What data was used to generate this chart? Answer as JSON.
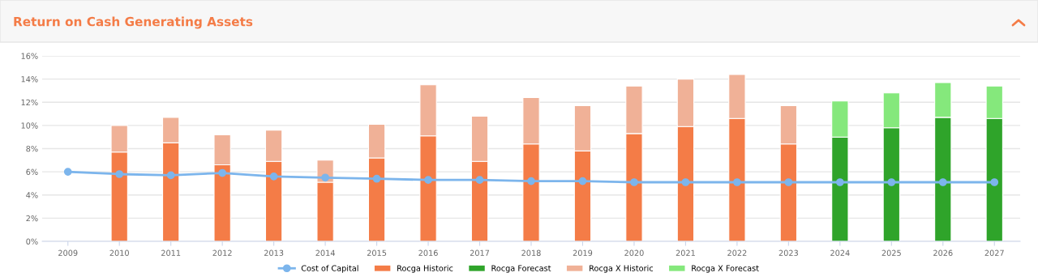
{
  "chart_data": {
    "type": "bar",
    "title": "Return on Cash Generating Assets",
    "stacked": true,
    "categories": [
      "2009",
      "2010",
      "2011",
      "2012",
      "2013",
      "2014",
      "2015",
      "2016",
      "2017",
      "2018",
      "2019",
      "2020",
      "2021",
      "2022",
      "2023",
      "2024",
      "2025",
      "2026",
      "2027"
    ],
    "series": [
      {
        "name": "Cost of Capital",
        "type": "line",
        "color": "#7cb5ec",
        "marker": "circle",
        "values": [
          6.0,
          5.8,
          5.7,
          5.9,
          5.6,
          5.5,
          5.4,
          5.3,
          5.3,
          5.2,
          5.2,
          5.1,
          5.1,
          5.1,
          5.1,
          5.1,
          5.1,
          5.1,
          5.1
        ]
      },
      {
        "name": "Rocga Historic",
        "color": "#f47c47",
        "values": [
          null,
          7.7,
          8.5,
          6.6,
          6.9,
          5.1,
          7.2,
          9.1,
          6.9,
          8.4,
          7.8,
          9.3,
          9.9,
          10.6,
          8.4,
          null,
          null,
          null,
          null
        ]
      },
      {
        "name": "Rocga Forecast",
        "color": "#2fa42a",
        "values": [
          null,
          null,
          null,
          null,
          null,
          null,
          null,
          null,
          null,
          null,
          null,
          null,
          null,
          null,
          null,
          9.0,
          9.8,
          10.7,
          10.6
        ]
      },
      {
        "name": "Rocga X Historic",
        "color": "#f0b197",
        "values": [
          null,
          2.3,
          2.2,
          2.6,
          2.7,
          1.9,
          2.9,
          4.4,
          3.9,
          4.0,
          3.9,
          4.1,
          4.1,
          3.8,
          3.3,
          null,
          null,
          null,
          null
        ]
      },
      {
        "name": "Rocga X Forecast",
        "color": "#85e87c",
        "values": [
          null,
          null,
          null,
          null,
          null,
          null,
          null,
          null,
          null,
          null,
          null,
          null,
          null,
          null,
          null,
          3.1,
          3.0,
          3.0,
          2.8
        ]
      }
    ],
    "ylim": [
      0,
      16
    ],
    "yticks": [
      {
        "value": 0,
        "label": "0%"
      },
      {
        "value": 2,
        "label": "2%"
      },
      {
        "value": 4,
        "label": "4%"
      },
      {
        "value": 6,
        "label": "6%"
      },
      {
        "value": 8,
        "label": "8%"
      },
      {
        "value": 10,
        "label": "10%"
      },
      {
        "value": 12,
        "label": "12%"
      },
      {
        "value": 14,
        "label": "14%"
      },
      {
        "value": 16,
        "label": "16%"
      }
    ],
    "grid": "y",
    "legend": "bottom"
  }
}
